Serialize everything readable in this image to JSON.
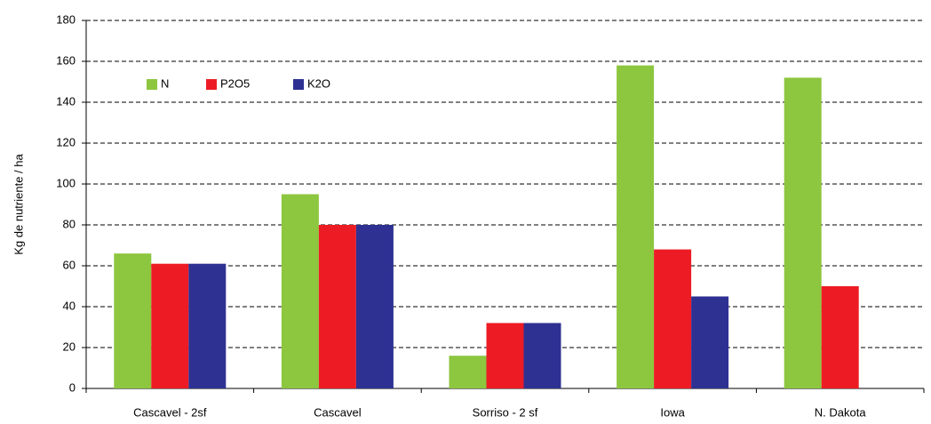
{
  "chart_data": {
    "type": "bar",
    "y_label": "Kg de nutriente / ha",
    "categories": [
      "Cascavel - 2sf",
      "Cascavel",
      "Sorriso - 2 sf",
      "Iowa",
      "N. Dakota"
    ],
    "series": [
      {
        "name": "N",
        "color": "#8dc63f",
        "values": [
          66,
          95,
          16,
          158,
          152
        ]
      },
      {
        "name": "P2O5",
        "color": "#ed1c24",
        "values": [
          61,
          80,
          32,
          68,
          50
        ]
      },
      {
        "name": "K2O",
        "color": "#2e3192",
        "values": [
          61,
          80,
          32,
          45,
          null
        ]
      }
    ],
    "ylim": [
      0,
      180
    ],
    "yticks": [
      0,
      20,
      40,
      60,
      80,
      100,
      120,
      140,
      160,
      180
    ],
    "grid": true,
    "legend": "top-left"
  }
}
